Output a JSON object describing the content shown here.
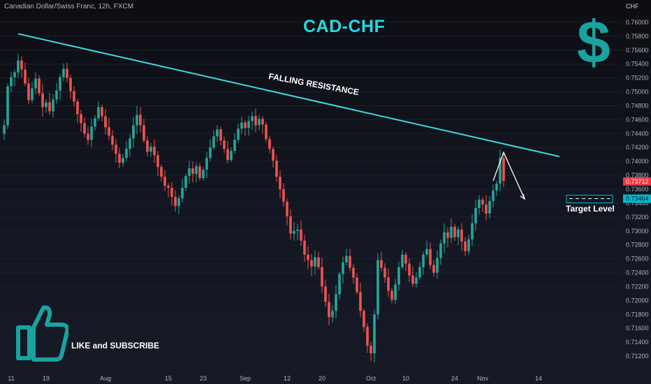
{
  "header": {
    "symbol_info": "Canadian Dollar/Swiss Franc, 12h, FXCM",
    "axis_unit": "CHF"
  },
  "annotations": {
    "title": "CAD-CHF",
    "resistance_label": "FALLING RESISTANCE",
    "target_label": "Target Level",
    "like_text": "LIKE and SUBSCRIBE",
    "logo_symbol": "$"
  },
  "icons": {
    "logo": "dollar-sign-icon",
    "like": "thumbs-up-icon"
  },
  "colors": {
    "background": "#131722",
    "accent": "#26d8e0",
    "logo": "#1aa3a0",
    "up": "#26a69a",
    "down": "#ef5350",
    "current_price_badge": "#f23645",
    "target_badge": "#00bcd4",
    "resistance_line": "#3fd8e0"
  },
  "chart_data": {
    "type": "candlestick",
    "instrument": "Canadian Dollar/Swiss Franc",
    "timeframe": "12h",
    "source": "FXCM",
    "y_unit": "CHF",
    "ylim": [
      0.71,
      0.762
    ],
    "y_ticks": [
      "0.76000",
      "0.75800",
      "0.75600",
      "0.75400",
      "0.75200",
      "0.75000",
      "0.74800",
      "0.74600",
      "0.74400",
      "0.74200",
      "0.74000",
      "0.73800",
      "0.73600",
      "0.73400",
      "0.73200",
      "0.73000",
      "0.72800",
      "0.72600",
      "0.72400",
      "0.72200",
      "0.72000",
      "0.71800",
      "0.71600",
      "0.71400",
      "0.71200"
    ],
    "x_ticks": [
      "11",
      "19",
      "Aug",
      "15",
      "23",
      "Sep",
      "12",
      "20",
      "Oct",
      "10",
      "24",
      "Nov",
      "14"
    ],
    "x_tick_index": [
      2,
      12,
      29,
      47,
      57,
      69,
      81,
      91,
      105,
      115,
      129,
      137,
      153
    ],
    "current_price": 0.73712,
    "current_price_label": "0.73712",
    "target_level": 0.73464,
    "target_level_label": "0.73464",
    "resistance_line": [
      {
        "index": 0,
        "price": 0.7588
      },
      {
        "index": 159,
        "price": 0.7407
      }
    ],
    "projection_path": [
      {
        "index": 140,
        "price": 0.7372
      },
      {
        "index": 143,
        "price": 0.7413
      },
      {
        "index": 149,
        "price": 0.7346
      }
    ],
    "closes": [
      0.7452,
      0.7508,
      0.7521,
      0.7528,
      0.7545,
      0.7532,
      0.7512,
      0.7488,
      0.7505,
      0.7519,
      0.7498,
      0.7478,
      0.7485,
      0.7472,
      0.7489,
      0.7502,
      0.7521,
      0.7533,
      0.752,
      0.7501,
      0.7486,
      0.7468,
      0.7455,
      0.744,
      0.7431,
      0.745,
      0.7462,
      0.7478,
      0.7465,
      0.7449,
      0.7437,
      0.7424,
      0.7411,
      0.7398,
      0.7405,
      0.7418,
      0.7433,
      0.7452,
      0.7467,
      0.7452,
      0.743,
      0.7414,
      0.7421,
      0.7409,
      0.7392,
      0.7378,
      0.7365,
      0.7362,
      0.7349,
      0.7336,
      0.7347,
      0.7362,
      0.7379,
      0.739,
      0.7382,
      0.7393,
      0.7376,
      0.7388,
      0.7405,
      0.742,
      0.7436,
      0.7446,
      0.743,
      0.7418,
      0.7402,
      0.7415,
      0.7431,
      0.7447,
      0.7456,
      0.7448,
      0.7458,
      0.7465,
      0.7452,
      0.7461,
      0.7453,
      0.7432,
      0.7418,
      0.7401,
      0.7378,
      0.736,
      0.7342,
      0.7321,
      0.7296,
      0.73,
      0.7302,
      0.7286,
      0.7266,
      0.7258,
      0.7249,
      0.7262,
      0.7248,
      0.722,
      0.7198,
      0.7176,
      0.7185,
      0.7209,
      0.7238,
      0.7255,
      0.7264,
      0.7247,
      0.7233,
      0.7212,
      0.7185,
      0.7162,
      0.7135,
      0.7124,
      0.718,
      0.7258,
      0.7247,
      0.7233,
      0.7214,
      0.7201,
      0.7223,
      0.7248,
      0.7266,
      0.7253,
      0.7236,
      0.7224,
      0.7233,
      0.7248,
      0.7266,
      0.7274,
      0.7251,
      0.724,
      0.7261,
      0.7282,
      0.7298,
      0.729,
      0.7306,
      0.7291,
      0.7302,
      0.7285,
      0.7271,
      0.7288,
      0.7311,
      0.7333,
      0.7345,
      0.7338,
      0.7325,
      0.7343,
      0.7358,
      0.7368,
      0.7405,
      0.7372
    ]
  }
}
